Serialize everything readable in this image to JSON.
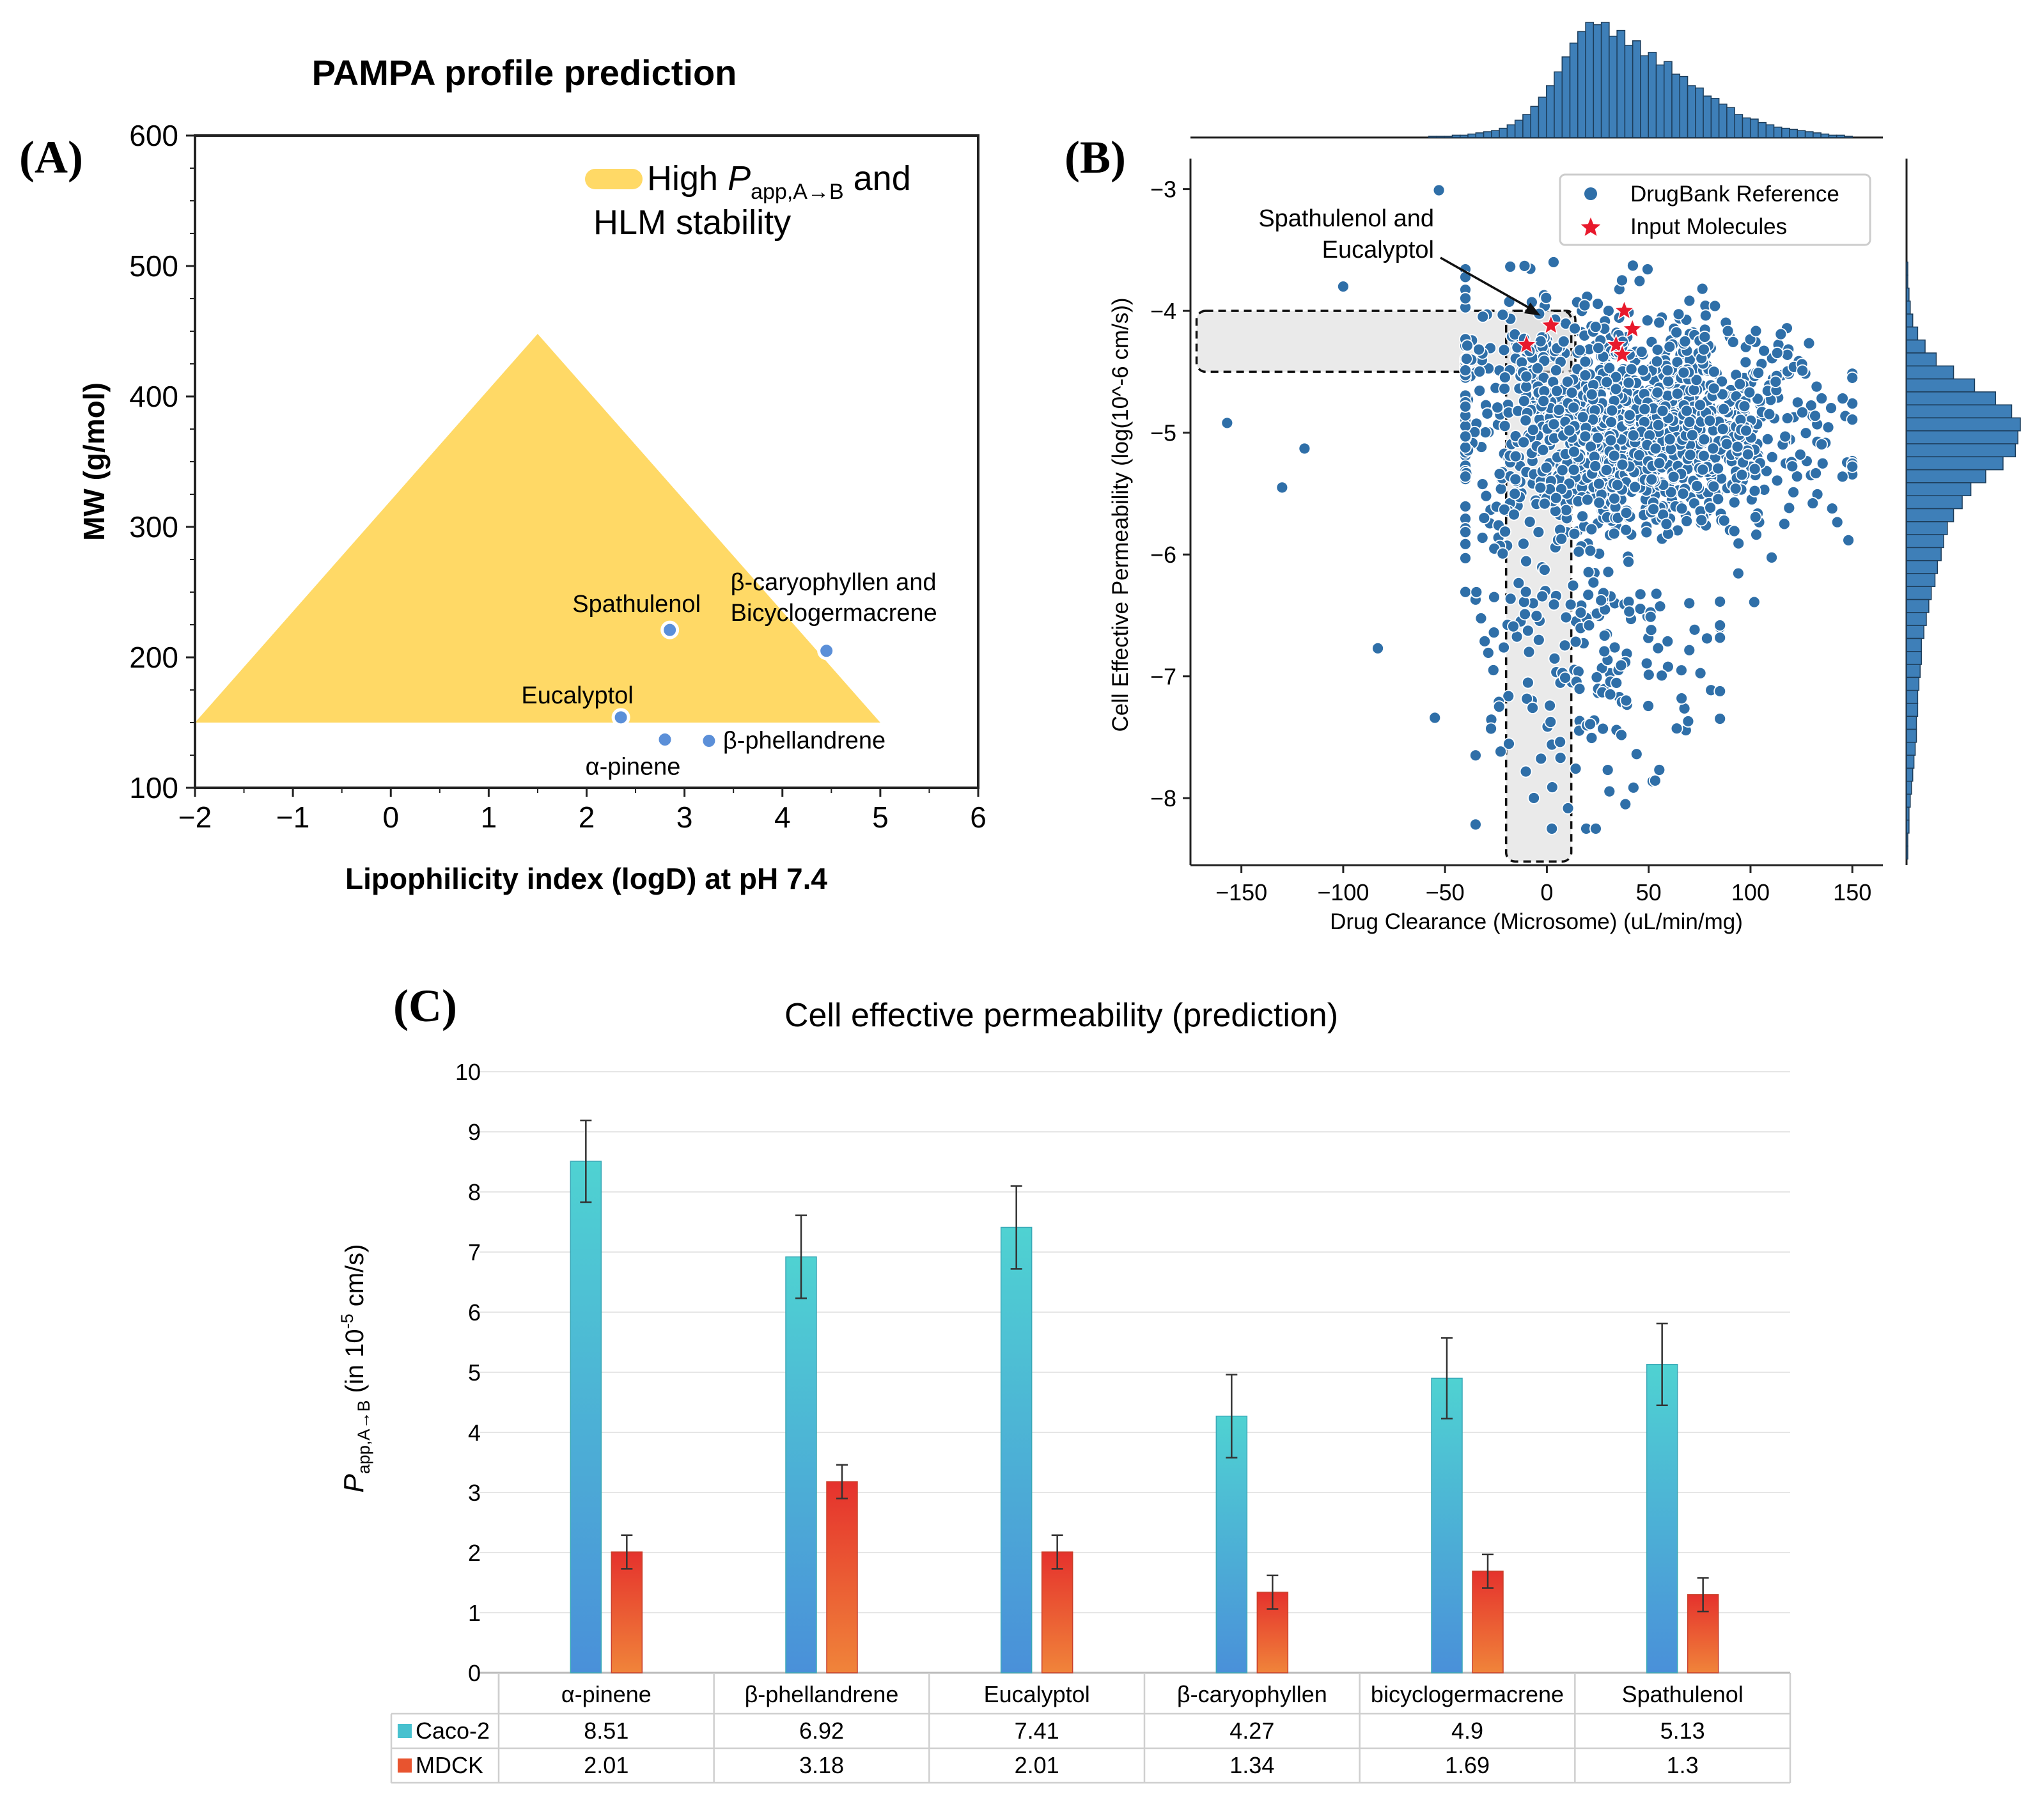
{
  "chart_data": [
    {
      "panel_label": "(A)",
      "type": "scatter",
      "title": "PAMPA profile prediction",
      "xlabel": "Lipophilicity index (logD) at pH 7.4",
      "ylabel": "MW (g/mol)",
      "xlim": [
        -2,
        6
      ],
      "ylim": [
        100,
        600
      ],
      "xticks": [
        -2,
        -1,
        0,
        1,
        2,
        3,
        4,
        5,
        6
      ],
      "xtick_labels": [
        "−2",
        "−1",
        "0",
        "1",
        "2",
        "3",
        "4",
        "5",
        "6"
      ],
      "yticks": [
        100,
        200,
        300,
        400,
        500,
        600
      ],
      "ytick_labels": [
        "100",
        "200",
        "300",
        "400",
        "500",
        "600"
      ],
      "region": {
        "label_high": "High ",
        "label_p": "P",
        "label_sub": "app,A→B",
        "label_and": " and",
        "label_line2": "HLM stability",
        "color": "#FFD966",
        "vertices": [
          [
            -2,
            150
          ],
          [
            1.5,
            448
          ],
          [
            5,
            150
          ]
        ]
      },
      "points": [
        {
          "label": "Spathulenol",
          "x": 2.85,
          "y": 221
        },
        {
          "label": "Eucalyptol",
          "x": 2.35,
          "y": 154
        },
        {
          "label": "α-pinene",
          "x": 2.8,
          "y": 137
        },
        {
          "label": "β-phellandrene",
          "x": 3.25,
          "y": 136
        },
        {
          "label": "β-caryophyllen and",
          "label2": "Bicyclogermacrene",
          "x": 4.45,
          "y": 205
        }
      ],
      "point_color": "#5B8FD8"
    },
    {
      "panel_label": "(B)",
      "type": "scatter",
      "xlabel": "Drug Clearance (Microsome) (uL/min/mg)",
      "ylabel": "Cell Effective Permeability (log(10^-6 cm/s))",
      "xlim": [
        -175,
        165
      ],
      "ylim": [
        -8.55,
        -2.75
      ],
      "xticks": [
        -150,
        -100,
        -50,
        0,
        50,
        100,
        150
      ],
      "xtick_labels": [
        "−150",
        "−100",
        "−50",
        "0",
        "50",
        "100",
        "150"
      ],
      "yticks": [
        -3,
        -4,
        -5,
        -6,
        -7,
        -8
      ],
      "ytick_labels": [
        "−3",
        "−4",
        "−5",
        "−6",
        "−7",
        "−8"
      ],
      "legend": [
        {
          "label": "DrugBank Reference",
          "marker": "circle",
          "color": "#2F6FA8"
        },
        {
          "label": "Input Molecules",
          "marker": "star",
          "color": "#E8192C"
        }
      ],
      "annotation": {
        "line1": "Spathulenol and",
        "line2": "Eucalyptol",
        "target": [
          -2,
          -4.05
        ],
        "text_at": [
          -50,
          -3.55
        ]
      },
      "box_horizontal": {
        "x": [
          -172,
          14
        ],
        "y": [
          -4.5,
          -4.0
        ]
      },
      "box_vertical": {
        "x": [
          -20,
          12
        ],
        "y": [
          -8.52,
          -4.0
        ]
      },
      "outlier_points": [
        [
          -53,
          -3.01
        ],
        [
          -100,
          -3.8
        ],
        [
          -157,
          -4.92
        ],
        [
          -119,
          -5.13
        ],
        [
          -130,
          -5.45
        ],
        [
          -83,
          -6.77
        ],
        [
          -55,
          -7.34
        ]
      ],
      "input_molecules": [
        [
          -10,
          -4.28
        ],
        [
          2,
          -4.12
        ],
        [
          34,
          -4.28
        ],
        [
          37,
          -4.36
        ],
        [
          42,
          -4.15
        ],
        [
          38,
          -4.0
        ]
      ],
      "cloud_counts": {
        "main": 1400,
        "tail": 160
      },
      "top_histogram_counts": [
        1,
        1,
        1,
        2,
        2,
        3,
        4,
        5,
        6,
        8,
        11,
        15,
        20,
        27,
        35,
        45,
        57,
        70,
        82,
        92,
        100,
        98,
        100,
        88,
        93,
        80,
        84,
        71,
        74,
        63,
        66,
        55,
        53,
        45,
        43,
        36,
        34,
        29,
        26,
        20,
        17,
        16,
        13,
        11,
        9,
        8,
        7,
        6,
        5,
        4,
        3,
        2,
        2,
        1
      ],
      "right_histogram_counts": [
        1,
        1,
        2,
        3,
        5,
        9,
        15,
        24,
        38,
        55,
        72,
        85,
        92,
        90,
        88,
        78,
        64,
        52,
        45,
        38,
        33,
        30,
        28,
        25,
        23,
        20,
        18,
        16,
        14,
        12,
        12,
        11,
        10,
        9,
        9,
        8,
        8,
        7,
        6,
        5,
        4,
        3,
        2,
        2,
        1,
        1
      ]
    },
    {
      "panel_label": "(C)",
      "type": "bar",
      "title": "Cell effective permeability (prediction)",
      "ylabel_p": "P",
      "ylabel_sub": "app,A→B",
      "ylabel_rest": " (in 10",
      "ylabel_sup": "-5",
      "ylabel_end": " cm/s)",
      "ylim": [
        0,
        10
      ],
      "yticks": [
        0,
        1,
        2,
        3,
        4,
        5,
        6,
        7,
        8,
        9,
        10
      ],
      "ytick_labels": [
        "0",
        "1",
        "2",
        "3",
        "4",
        "5",
        "6",
        "7",
        "8",
        "9",
        "10"
      ],
      "categories": [
        "α-pinene",
        "β-phellandrene",
        "Eucalyptol",
        "β-caryophyllen",
        "bicyclogermacrene",
        "Spathulenol"
      ],
      "series": [
        {
          "name": "Caco-2",
          "values": [
            8.51,
            6.92,
            7.41,
            4.27,
            4.9,
            5.13
          ],
          "errors": [
            0.68,
            0.69,
            0.69,
            0.69,
            0.67,
            0.68
          ],
          "color_top": "#4FD2D2",
          "color_bottom": "#4A90D9"
        },
        {
          "name": "MDCK",
          "values": [
            2.01,
            3.18,
            2.01,
            1.34,
            1.69,
            1.3
          ],
          "errors": [
            0.28,
            0.28,
            0.28,
            0.28,
            0.28,
            0.28
          ],
          "color_top": "#E5322D",
          "color_bottom": "#F0843A"
        }
      ],
      "table_values": [
        [
          "8.51",
          "6.92",
          "7.41",
          "4.27",
          "4.9",
          "5.13"
        ],
        [
          "2.01",
          "3.18",
          "2.01",
          "1.34",
          "1.69",
          "1.3"
        ]
      ]
    }
  ]
}
